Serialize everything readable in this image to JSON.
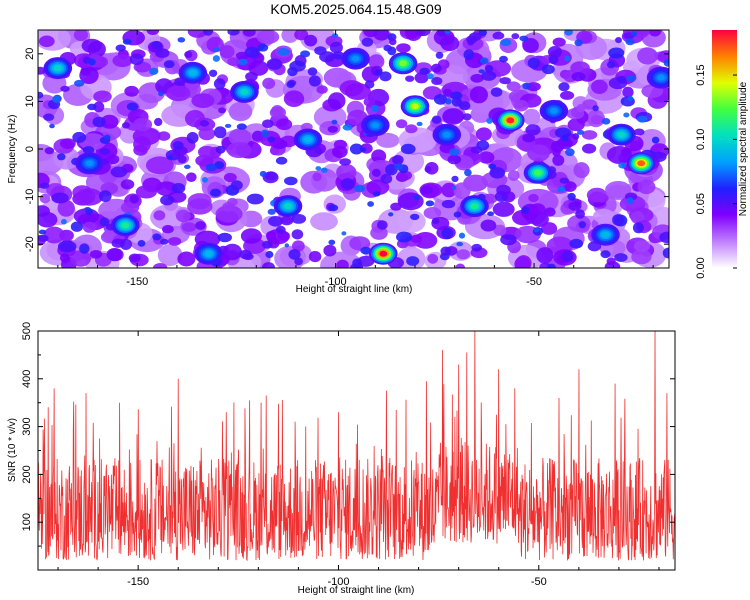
{
  "title": "KOM5.2025.064.15.48.G09",
  "colors": {
    "snr_line": "#f03030",
    "frame": "#000000"
  },
  "colorbar": {
    "label": "Normalized spectral amplitude",
    "range": [
      0.0,
      0.185
    ],
    "ticks": [
      "0.00",
      "0.05",
      "0.10",
      "0.15"
    ],
    "tick_values": [
      0.0,
      0.05,
      0.1,
      0.15
    ],
    "colormap": [
      "#ffffff",
      "#c080ff",
      "#8000ff",
      "#2020ff",
      "#00a0ff",
      "#00e0c0",
      "#40ff40",
      "#e0ff00",
      "#ff8000",
      "#ff0040"
    ]
  },
  "chart_data": [
    {
      "type": "heatmap",
      "title": "KOM5.2025.064.15.48.G09",
      "xlabel": "Height of straight line (km)",
      "ylabel": "Frequency (Hz)",
      "xlim": [
        -175,
        -16
      ],
      "ylim": [
        -25,
        25
      ],
      "x_ticks": [
        -150,
        -100,
        -50
      ],
      "x_tick_labels": [
        "-150",
        "-100",
        "-50"
      ],
      "y_ticks": [
        -20,
        -10,
        0,
        10,
        20
      ],
      "y_tick_labels": [
        "-20",
        "-10",
        "0",
        "10",
        "20"
      ],
      "peaks": [
        {
          "x": -88,
          "y": -22,
          "v": 0.185
        },
        {
          "x": -56,
          "y": 6,
          "v": 0.18
        },
        {
          "x": -23,
          "y": -3,
          "v": 0.17
        },
        {
          "x": -80,
          "y": 9,
          "v": 0.14
        },
        {
          "x": -83,
          "y": 18,
          "v": 0.13
        },
        {
          "x": -49,
          "y": -5,
          "v": 0.12
        },
        {
          "x": -65,
          "y": -12,
          "v": 0.11
        },
        {
          "x": -153,
          "y": -16,
          "v": 0.11
        },
        {
          "x": -170,
          "y": 17,
          "v": 0.1
        },
        {
          "x": -123,
          "y": 12,
          "v": 0.1
        },
        {
          "x": -112,
          "y": -12,
          "v": 0.1
        },
        {
          "x": -28,
          "y": 3,
          "v": 0.1
        },
        {
          "x": -32,
          "y": -18,
          "v": 0.09
        },
        {
          "x": -107,
          "y": 2,
          "v": 0.09
        },
        {
          "x": -136,
          "y": 16,
          "v": 0.09
        },
        {
          "x": -132,
          "y": -22,
          "v": 0.09
        },
        {
          "x": -18,
          "y": 15,
          "v": 0.08
        },
        {
          "x": -45,
          "y": 8,
          "v": 0.08
        },
        {
          "x": -90,
          "y": 5,
          "v": 0.08
        },
        {
          "x": -162,
          "y": -3,
          "v": 0.08
        },
        {
          "x": -95,
          "y": 19,
          "v": 0.08
        },
        {
          "x": -72,
          "y": 3,
          "v": 0.08
        }
      ]
    },
    {
      "type": "line",
      "xlabel": "Height of straight line (km)",
      "ylabel": "SNR (10 * v/v)",
      "xlim": [
        -175,
        -16
      ],
      "ylim": [
        0,
        500
      ],
      "x_ticks": [
        -150,
        -100,
        -50
      ],
      "x_tick_labels": [
        "-150",
        "-100",
        "-50"
      ],
      "y_ticks": [
        100,
        200,
        300,
        400,
        500
      ],
      "y_tick_labels": [
        "100",
        "200",
        "300",
        "400",
        "500"
      ],
      "baseline_mean": 125,
      "spikes": [
        {
          "x": -66,
          "y": 505
        },
        {
          "x": -21,
          "y": 505
        },
        {
          "x": -74,
          "y": 460
        },
        {
          "x": -70,
          "y": 430
        },
        {
          "x": -68,
          "y": 455
        },
        {
          "x": -60,
          "y": 420
        },
        {
          "x": -140,
          "y": 400
        },
        {
          "x": -78,
          "y": 395
        },
        {
          "x": -40,
          "y": 420
        },
        {
          "x": -31,
          "y": 390
        },
        {
          "x": -163,
          "y": 370
        },
        {
          "x": -171,
          "y": 380
        },
        {
          "x": -118,
          "y": 365
        },
        {
          "x": -88,
          "y": 375
        },
        {
          "x": -56,
          "y": 380
        },
        {
          "x": -128,
          "y": 330
        },
        {
          "x": -100,
          "y": 330
        },
        {
          "x": -45,
          "y": 360
        },
        {
          "x": -18,
          "y": 370
        }
      ]
    }
  ]
}
